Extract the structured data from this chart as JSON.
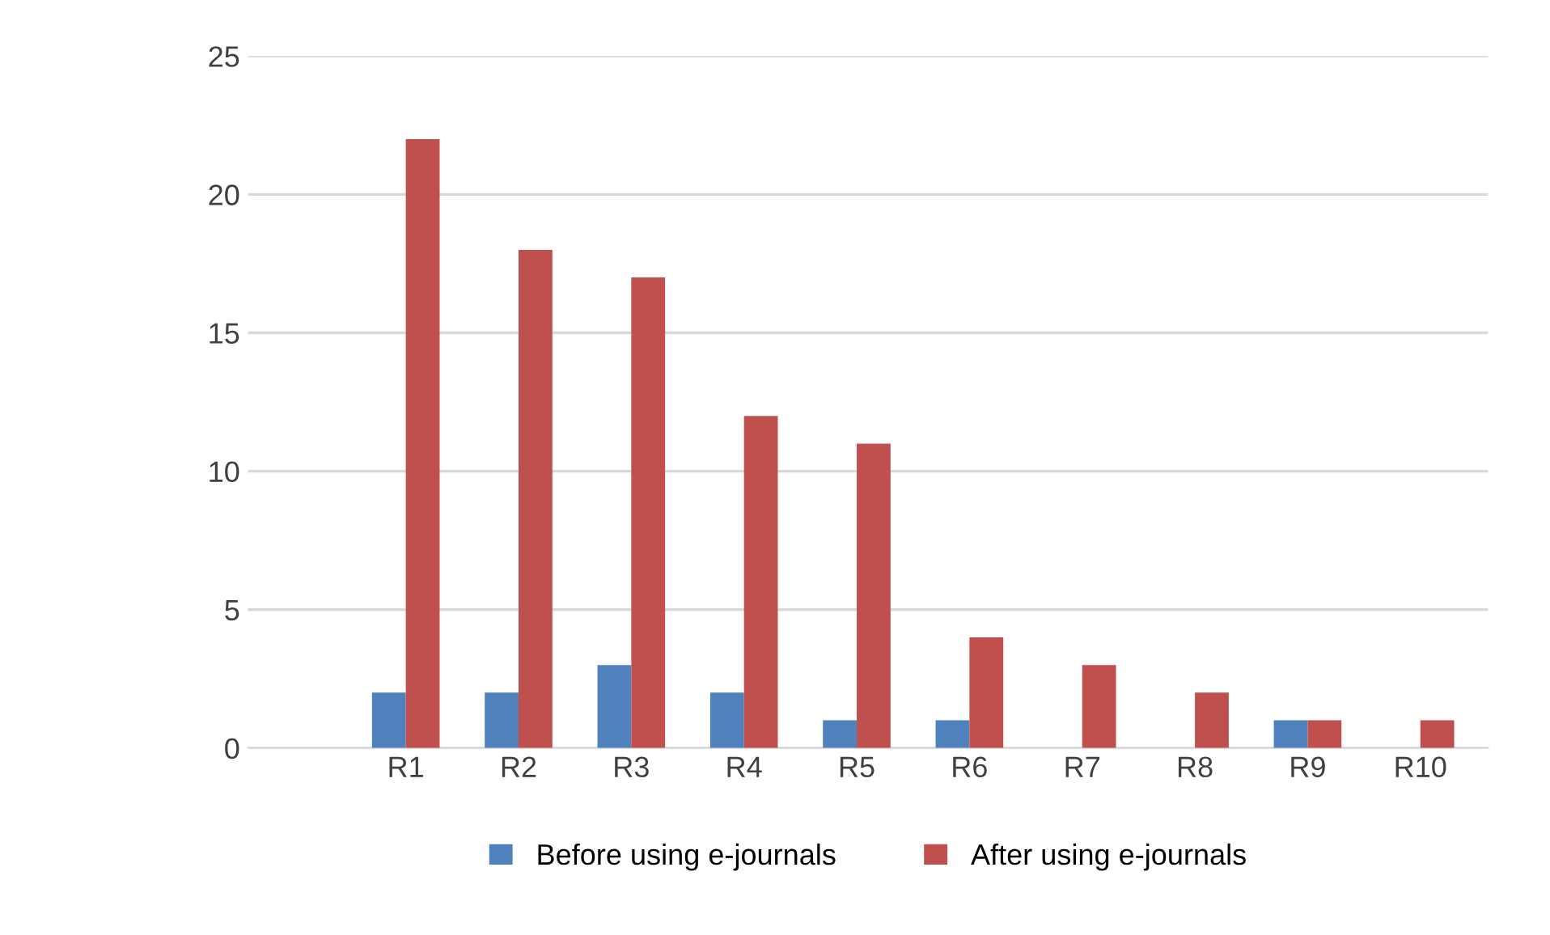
{
  "chart_data": {
    "type": "bar",
    "categories": [
      "R1",
      "R2",
      "R3",
      "R4",
      "R5",
      "R6",
      "R7",
      "R8",
      "R9",
      "R10"
    ],
    "series": [
      {
        "name": "Before using e-journals",
        "color": "#4f81bd",
        "values": [
          2,
          2,
          3,
          2,
          1,
          1,
          0,
          0,
          1,
          0
        ]
      },
      {
        "name": "After using e-journals",
        "color": "#c0504d",
        "values": [
          22,
          18,
          17,
          12,
          11,
          4,
          3,
          2,
          1,
          1
        ]
      }
    ],
    "ylim": [
      0,
      25
    ],
    "yticks": [
      0,
      5,
      10,
      15,
      20,
      25
    ],
    "grid": "y",
    "legend": "bottom"
  }
}
